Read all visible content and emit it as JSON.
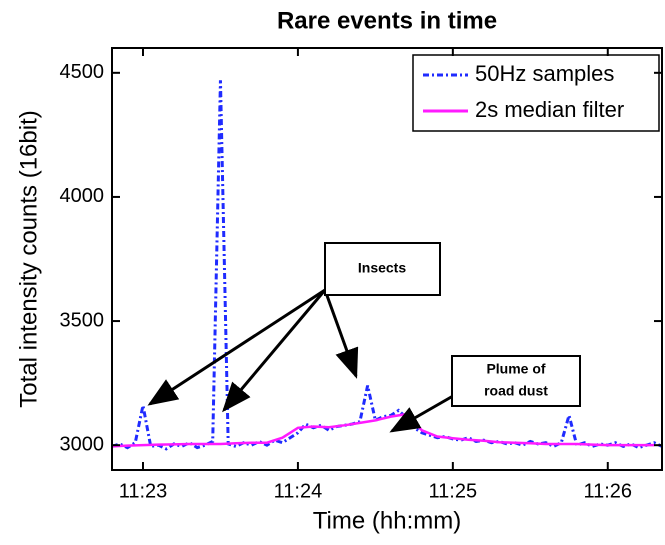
{
  "chart_data": {
    "type": "line",
    "title": "Rare events in time",
    "x_label": "Time (hh:mm)",
    "y_label": "Total intensity counts (16bit)",
    "xlim": [
      22.8,
      26.35
    ],
    "ylim": [
      2900,
      4600
    ],
    "xticks": [
      {
        "value": 23,
        "label": "11:23"
      },
      {
        "value": 24,
        "label": "11:24"
      },
      {
        "value": 25,
        "label": "11:25"
      },
      {
        "value": 26,
        "label": "11:26"
      }
    ],
    "yticks": [
      3000,
      3500,
      4000,
      4500
    ],
    "legend": "upper right",
    "series": [
      {
        "name": "50Hz samples",
        "color": "#1f2bff",
        "dash": "dashdot",
        "x": [
          22.8,
          22.85,
          22.9,
          22.95,
          23.0,
          23.05,
          23.1,
          23.15,
          23.2,
          23.25,
          23.3,
          23.35,
          23.4,
          23.45,
          23.5,
          23.55,
          23.6,
          23.65,
          23.7,
          23.75,
          23.8,
          23.85,
          23.9,
          23.95,
          24.0,
          24.05,
          24.1,
          24.15,
          24.2,
          24.25,
          24.3,
          24.35,
          24.4,
          24.45,
          24.5,
          24.55,
          24.6,
          24.65,
          24.7,
          24.75,
          24.8,
          24.85,
          24.9,
          24.95,
          25.0,
          25.05,
          25.1,
          25.15,
          25.2,
          25.25,
          25.3,
          25.35,
          25.4,
          25.45,
          25.5,
          25.55,
          25.6,
          25.65,
          25.7,
          25.75,
          25.8,
          25.85,
          25.9,
          25.95,
          26.0,
          26.05,
          26.1,
          26.15,
          26.2,
          26.25,
          26.3,
          26.35
        ],
        "values": [
          2995,
          3005,
          2990,
          3010,
          3160,
          2995,
          3000,
          2985,
          3005,
          2995,
          3010,
          2990,
          3000,
          3015,
          4470,
          3005,
          2995,
          3010,
          3000,
          3015,
          3000,
          3020,
          3010,
          3030,
          3050,
          3085,
          3070,
          3080,
          3060,
          3075,
          3080,
          3085,
          3095,
          3240,
          3100,
          3115,
          3120,
          3140,
          3110,
          3070,
          3050,
          3040,
          3030,
          3035,
          3025,
          3020,
          3030,
          3015,
          3020,
          3010,
          3015,
          3005,
          3010,
          3000,
          3015,
          3005,
          3010,
          2995,
          3010,
          3120,
          3000,
          3010,
          2995,
          3005,
          3000,
          3010,
          2995,
          3005,
          2990,
          3000,
          3010,
          2995
        ]
      },
      {
        "name": "2s median filter",
        "color": "#ff1aff",
        "dash": "solid",
        "x": [
          22.8,
          22.9,
          23.0,
          23.1,
          23.2,
          23.3,
          23.4,
          23.5,
          23.6,
          23.7,
          23.8,
          23.9,
          24.0,
          24.1,
          24.2,
          24.3,
          24.4,
          24.5,
          24.6,
          24.7,
          24.8,
          24.9,
          25.0,
          25.1,
          25.2,
          25.3,
          25.4,
          25.5,
          25.6,
          25.7,
          25.8,
          25.9,
          26.0,
          26.1,
          26.2,
          26.3
        ],
        "values": [
          2995,
          2998,
          3000,
          3002,
          3003,
          3005,
          3005,
          3005,
          3008,
          3010,
          3010,
          3030,
          3070,
          3075,
          3072,
          3080,
          3090,
          3100,
          3115,
          3125,
          3060,
          3035,
          3028,
          3022,
          3018,
          3012,
          3010,
          3008,
          3005,
          3005,
          3005,
          3002,
          3000,
          3000,
          3000,
          3000
        ]
      }
    ],
    "annotations": [
      {
        "text": "Insects"
      },
      {
        "lines": [
          "Plume of",
          "road dust"
        ]
      }
    ]
  }
}
